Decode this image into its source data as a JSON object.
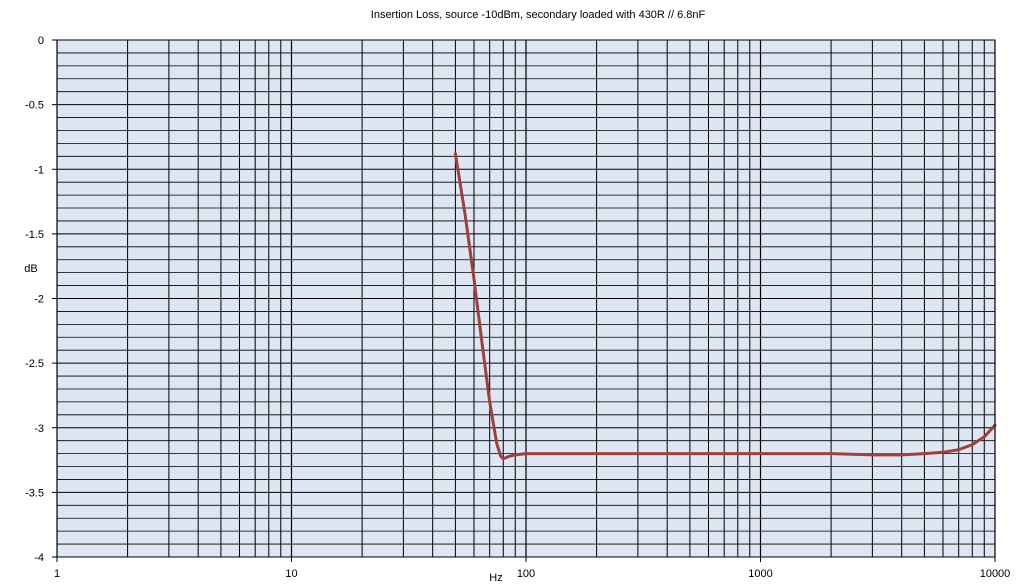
{
  "chart_data": {
    "type": "line",
    "title": "Insertion Loss, source -10dBm, secondary loaded with 430R // 6.8nF",
    "xlabel": "Hz",
    "ylabel": "dB",
    "xscale": "log",
    "xlim": [
      1,
      10000
    ],
    "ylim": [
      -4,
      0
    ],
    "x_ticks": [
      "1",
      "10",
      "100",
      "1000",
      "10000"
    ],
    "y_ticks": [
      "0",
      "-0.5",
      "-1",
      "-1.5",
      "-2",
      "-2.5",
      "-3",
      "-3.5",
      "-4"
    ],
    "y_minor_step": 0.1,
    "grid": true,
    "legend": "none",
    "colors": {
      "plot_bg": "#dde6f2",
      "grid": "#000000",
      "series": "#a0403c"
    },
    "series": [
      {
        "x": [
          50,
          55,
          60,
          65,
          70,
          75,
          78,
          80,
          85,
          90,
          100,
          200,
          500,
          1000,
          2000,
          3000,
          4000,
          5000,
          6000,
          7000,
          8000,
          9000,
          10000
        ],
        "y": [
          -0.88,
          -1.35,
          -1.85,
          -2.35,
          -2.8,
          -3.12,
          -3.22,
          -3.24,
          -3.22,
          -3.21,
          -3.2,
          -3.2,
          -3.2,
          -3.2,
          -3.2,
          -3.21,
          -3.21,
          -3.2,
          -3.19,
          -3.17,
          -3.13,
          -3.07,
          -2.98
        ]
      }
    ]
  }
}
